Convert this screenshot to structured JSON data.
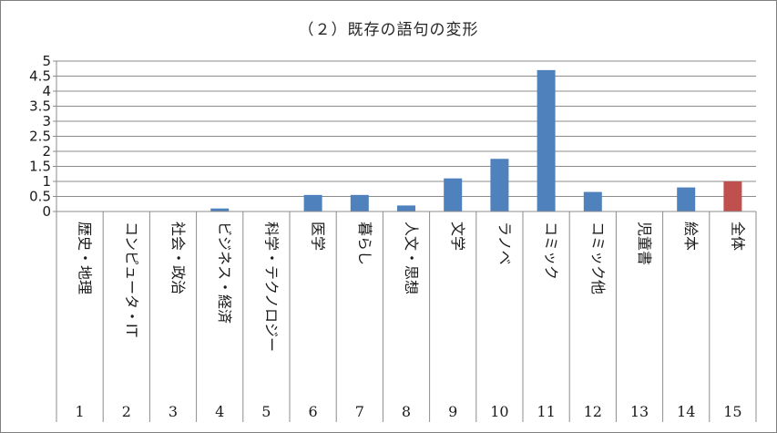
{
  "chart_data": {
    "type": "bar",
    "title": "（２）既存の語句の変形",
    "categories": [
      "歴史・地理",
      "コンピュータ・IT",
      "社会・政治",
      "ビジネス・経済",
      "科学・テクノロジー",
      "医学",
      "暮らし",
      "人文・思想",
      "文学",
      "ラノベ",
      "コミック",
      "コミック他",
      "児童書",
      "絵本",
      "全体"
    ],
    "indices": [
      "1",
      "2",
      "3",
      "4",
      "5",
      "6",
      "7",
      "8",
      "9",
      "10",
      "11",
      "12",
      "13",
      "14",
      "15"
    ],
    "values": [
      0,
      0,
      0,
      0.1,
      0,
      0.55,
      0.55,
      0.2,
      1.1,
      1.75,
      4.7,
      0.65,
      0,
      0.8,
      1.0
    ],
    "bar_colors": [
      "#4f81bd",
      "#4f81bd",
      "#4f81bd",
      "#4f81bd",
      "#4f81bd",
      "#4f81bd",
      "#4f81bd",
      "#4f81bd",
      "#4f81bd",
      "#4f81bd",
      "#4f81bd",
      "#4f81bd",
      "#4f81bd",
      "#4f81bd",
      "#c0504d"
    ],
    "ylim": [
      0,
      5
    ],
    "yticks": [
      "0",
      "0.5",
      "1",
      "1.5",
      "2",
      "2.5",
      "3",
      "3.5",
      "4",
      "4.5",
      "5"
    ],
    "grid": true,
    "legend": "none"
  }
}
